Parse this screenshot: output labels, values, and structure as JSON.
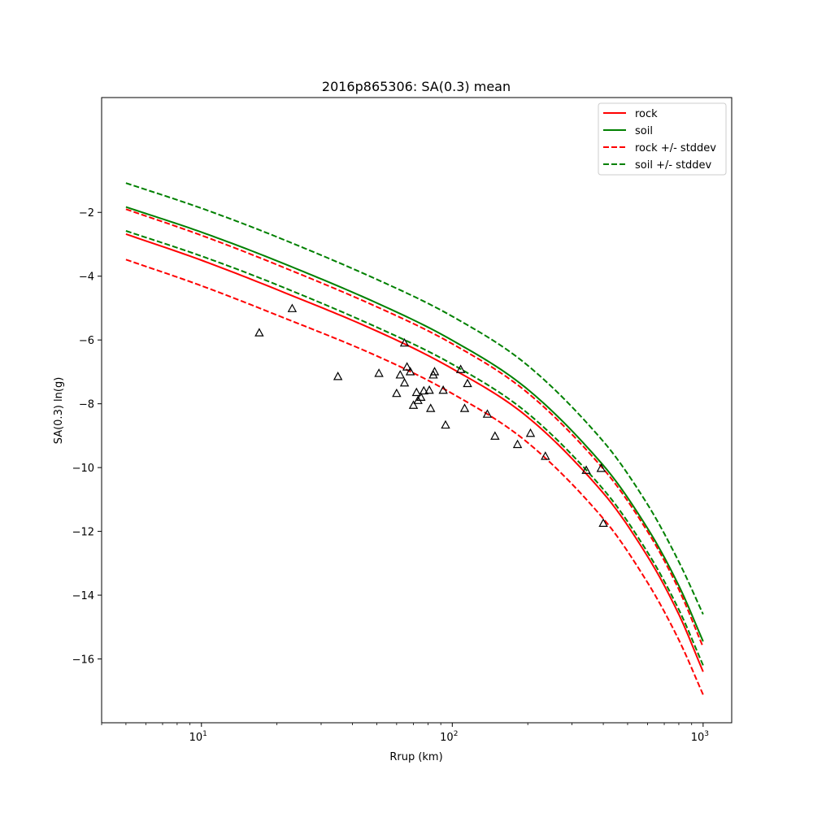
{
  "chart_data": {
    "type": "line",
    "title": "2016p865306: SA(0.3) mean",
    "xlabel": "Rrup (km)",
    "ylabel": "SA(0.3) ln(g)",
    "xscale": "log",
    "xlim": [
      4,
      1300
    ],
    "ylim": [
      -18,
      1.6
    ],
    "grid": false,
    "legend_position": "top-right",
    "x_ticks": [
      {
        "value": 10,
        "base": "10",
        "exp": "1"
      },
      {
        "value": 100,
        "base": "10",
        "exp": "2"
      },
      {
        "value": 1000,
        "base": "10",
        "exp": "3"
      }
    ],
    "y_ticks": [
      {
        "value": -2,
        "label": "−2"
      },
      {
        "value": -4,
        "label": "−4"
      },
      {
        "value": -6,
        "label": "−6"
      },
      {
        "value": -8,
        "label": "−8"
      },
      {
        "value": -10,
        "label": "−10"
      },
      {
        "value": -12,
        "label": "−12"
      },
      {
        "value": -14,
        "label": "−14"
      },
      {
        "value": -16,
        "label": "−16"
      }
    ],
    "curve_x": [
      5,
      10,
      20,
      50,
      100,
      200,
      400,
      600,
      800,
      1000
    ],
    "series": [
      {
        "name": "rock",
        "color": "#ff0000",
        "dash": "solid",
        "legend": true,
        "y": [
          -2.68,
          -3.5,
          -4.42,
          -5.72,
          -6.9,
          -8.42,
          -10.8,
          -12.78,
          -14.6,
          -16.4
        ]
      },
      {
        "name": "soil",
        "color": "#008000",
        "dash": "solid",
        "legend": true,
        "y": [
          -1.83,
          -2.62,
          -3.52,
          -4.84,
          -6.01,
          -7.55,
          -9.93,
          -11.9,
          -13.7,
          -15.45
        ]
      },
      {
        "name": "rock +/- stddev",
        "color": "#ff0000",
        "dash": "dashed",
        "legend": true,
        "y": [
          -1.9,
          -2.72,
          -3.64,
          -4.96,
          -6.12,
          -7.66,
          -10.04,
          -12.0,
          -13.82,
          -15.63
        ]
      },
      {
        "name": "",
        "color": "#ff0000",
        "dash": "dashed",
        "legend": false,
        "y": [
          -3.48,
          -4.3,
          -5.22,
          -6.5,
          -7.68,
          -9.22,
          -11.6,
          -13.6,
          -15.4,
          -17.12
        ]
      },
      {
        "name": "soil +/- stddev",
        "color": "#008000",
        "dash": "dashed",
        "legend": true,
        "y": [
          -1.08,
          -1.87,
          -2.77,
          -4.1,
          -5.26,
          -6.8,
          -9.18,
          -11.15,
          -12.95,
          -14.6
        ]
      },
      {
        "name": "",
        "color": "#008000",
        "dash": "dashed",
        "legend": false,
        "y": [
          -2.58,
          -3.37,
          -4.27,
          -5.6,
          -6.76,
          -8.3,
          -10.68,
          -12.65,
          -14.45,
          -16.2
        ]
      }
    ],
    "observations": {
      "marker": "triangle",
      "color": "#000000",
      "points": [
        {
          "x": 17,
          "y": -5.78
        },
        {
          "x": 23,
          "y": -5.02
        },
        {
          "x": 35,
          "y": -7.15
        },
        {
          "x": 51,
          "y": -7.05
        },
        {
          "x": 60,
          "y": -7.68
        },
        {
          "x": 62,
          "y": -7.1
        },
        {
          "x": 64.5,
          "y": -6.1
        },
        {
          "x": 64.5,
          "y": -7.35
        },
        {
          "x": 66,
          "y": -6.85
        },
        {
          "x": 68,
          "y": -7.0
        },
        {
          "x": 70,
          "y": -8.05
        },
        {
          "x": 72,
          "y": -7.65
        },
        {
          "x": 73,
          "y": -7.9
        },
        {
          "x": 75,
          "y": -7.8
        },
        {
          "x": 77,
          "y": -7.6
        },
        {
          "x": 81,
          "y": -7.58
        },
        {
          "x": 82,
          "y": -8.15
        },
        {
          "x": 84,
          "y": -7.1
        },
        {
          "x": 85,
          "y": -7.0
        },
        {
          "x": 92,
          "y": -7.58
        },
        {
          "x": 94,
          "y": -8.67
        },
        {
          "x": 108,
          "y": -6.93
        },
        {
          "x": 112,
          "y": -8.15
        },
        {
          "x": 115,
          "y": -7.37
        },
        {
          "x": 138,
          "y": -8.33
        },
        {
          "x": 148,
          "y": -9.02
        },
        {
          "x": 182,
          "y": -9.28
        },
        {
          "x": 205,
          "y": -8.93
        },
        {
          "x": 235,
          "y": -9.65
        },
        {
          "x": 342,
          "y": -10.09
        },
        {
          "x": 392,
          "y": -10.03
        },
        {
          "x": 400,
          "y": -11.75
        }
      ]
    }
  }
}
